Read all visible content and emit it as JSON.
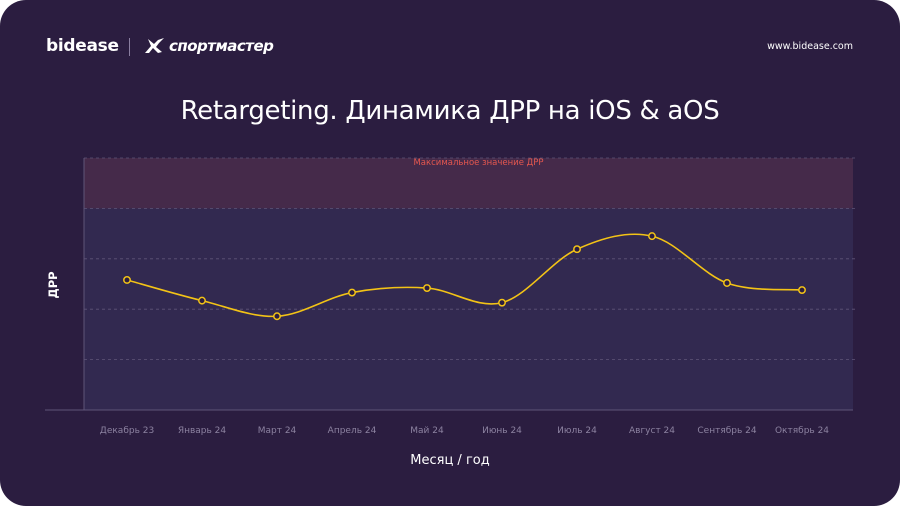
{
  "header": {
    "logo_text": "bidease",
    "partner_name": "спортмастер",
    "website": "www.bidease.com"
  },
  "colors": {
    "background": "#2b1d40",
    "plot_area": "#322950",
    "threshold_zone": "#452a4a",
    "line": "#f3c316",
    "threshold_label": "#e4574f"
  },
  "chart_data": {
    "type": "line",
    "title": "Retargeting. Динамика ДРР на iOS & aOS",
    "xlabel": "Месяц / год",
    "ylabel": "ДРР",
    "categories": [
      "Декабрь 23",
      "Январь 24",
      "Март 24",
      "Апрель 24",
      "Май 24",
      "Июнь 24",
      "Июль 24",
      "Август 24",
      "Сентябрь 24",
      "Октябрь 24"
    ],
    "series": [
      {
        "name": "ДРР",
        "values": [
          2.58,
          2.17,
          1.86,
          2.33,
          2.42,
          2.13,
          3.19,
          3.45,
          2.52,
          2.38
        ]
      }
    ],
    "ylim": [
      0,
      5
    ],
    "y_ticks_labeled": false,
    "gridlines": [
      1,
      2,
      3,
      4,
      5
    ],
    "threshold": {
      "from": 4,
      "to": 5,
      "label": "Максимальное значение ДРР"
    },
    "legend": "none"
  }
}
